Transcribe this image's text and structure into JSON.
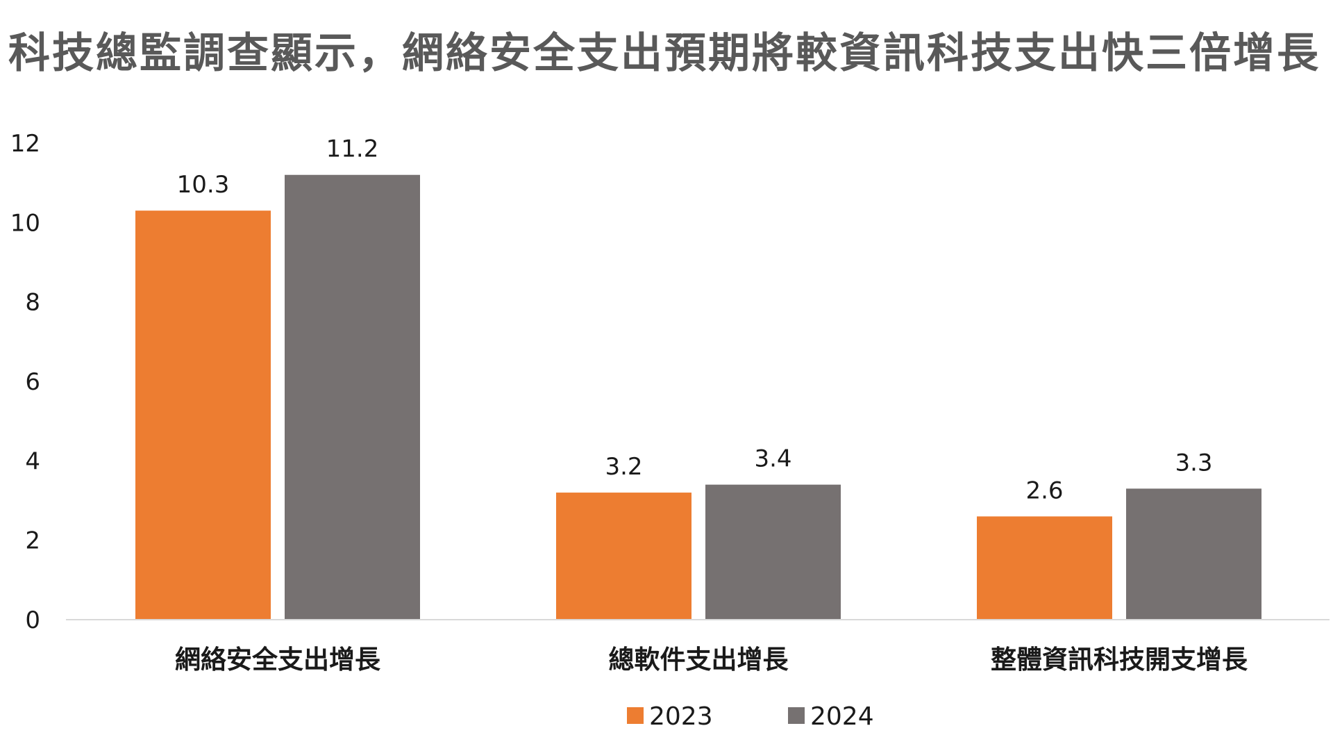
{
  "colors": {
    "title": "#595959",
    "series_2023": "#ED7D31",
    "series_2024": "#767171",
    "axis": "#D9D9D9",
    "text": "#1a1a1a"
  },
  "chart_data": {
    "type": "bar",
    "title": "科技總監調查顯示，網絡安全支出預期將較資訊科技支出快三倍增長",
    "xlabel": "",
    "ylabel": "",
    "categories": [
      "網絡安全支出增長",
      "總軟件支出增長",
      "整體資訊科技開支增長"
    ],
    "series": [
      {
        "name": "2023",
        "values": [
          10.3,
          3.2,
          2.6
        ]
      },
      {
        "name": "2024",
        "values": [
          11.2,
          3.4,
          3.3
        ]
      }
    ],
    "ylim": [
      0,
      12
    ],
    "yticks": [
      0,
      2,
      4,
      6,
      8,
      10,
      12
    ],
    "grid": false,
    "legend_position": "bottom",
    "data_labels": true
  }
}
